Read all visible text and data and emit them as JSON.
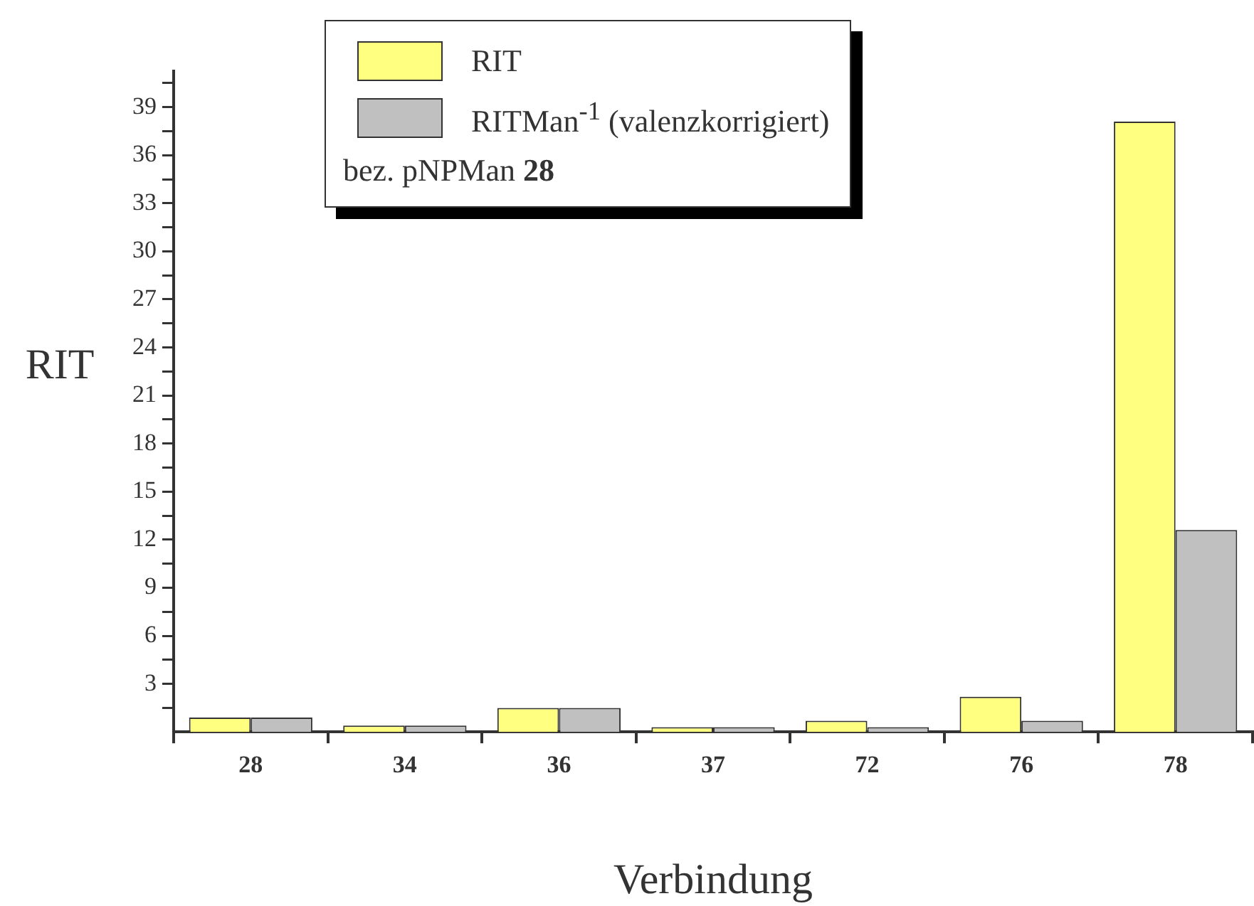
{
  "chart_data": {
    "type": "bar",
    "xlabel": "Verbindung",
    "ylabel": "RIT",
    "categories": [
      "28",
      "34",
      "36",
      "37",
      "72",
      "76",
      "78"
    ],
    "series": [
      {
        "name": "RIT",
        "color": "#ffff80",
        "values": [
          0.9,
          0.4,
          1.5,
          0.3,
          0.7,
          2.2,
          38.1
        ]
      },
      {
        "name": "RITMan$^{-1}$ (valenzkorrigiert)",
        "color": "#c0c0c0",
        "values": [
          0.9,
          0.4,
          1.5,
          0.3,
          0.3,
          0.7,
          12.6
        ]
      }
    ],
    "ylim": [
      0,
      41.25
    ],
    "yticks": [
      {
        "value": 1.5,
        "label": null
      },
      3,
      {
        "value": 4.5,
        "label": null
      },
      6,
      {
        "value": 7.5,
        "label": null
      },
      9,
      {
        "value": 10.5,
        "label": null
      },
      12,
      {
        "value": 13.5,
        "label": null
      },
      15,
      {
        "value": 16.5,
        "label": null
      },
      18,
      {
        "value": 19.5,
        "label": null
      },
      21,
      {
        "value": 22.5,
        "label": null
      },
      24,
      {
        "value": 25.5,
        "label": null
      },
      27,
      {
        "value": 28.5,
        "label": null
      },
      30,
      {
        "value": 31.5,
        "label": null
      },
      33,
      {
        "value": 34.5,
        "label": null
      },
      36,
      {
        "value": 37.5,
        "label": null
      },
      39,
      {
        "value": 40.5,
        "label": null
      }
    ],
    "grid": false,
    "legend": "top",
    "annotations": [
      "bez. pNPMan 28"
    ]
  }
}
